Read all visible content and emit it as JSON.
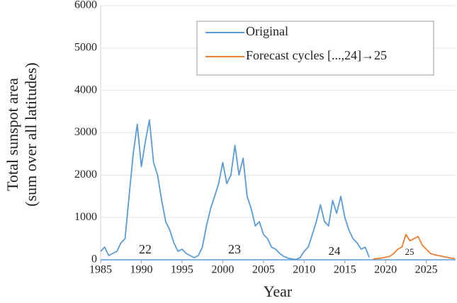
{
  "chart_data": {
    "type": "line",
    "x_label": "Year",
    "y_label": [
      "Total sunspot area",
      "(sum over all latitudes)"
    ],
    "annotations": [
      "22",
      "23",
      "24",
      "25"
    ],
    "xlim": [
      1985,
      2028.6
    ],
    "xticks": [
      1985,
      1990,
      1995,
      2000,
      2005,
      2010,
      2015,
      2020,
      2025
    ],
    "ylim": [
      0,
      6000
    ],
    "yticks": [
      0,
      1000,
      2000,
      3000,
      4000,
      5000,
      6000
    ],
    "grid": true,
    "legend": "top-right",
    "series": [
      {
        "name": "Original",
        "color": "#5b9bd5",
        "x": [
          1985,
          1985.5,
          1986,
          1986.5,
          1987,
          1987.5,
          1988,
          1988.5,
          1989,
          1989.5,
          1990,
          1990.5,
          1991,
          1991.5,
          1992,
          1992.5,
          1993,
          1993.5,
          1994,
          1994.5,
          1995,
          1995.5,
          1996,
          1996.5,
          1997,
          1997.5,
          1998,
          1998.5,
          1999,
          1999.5,
          2000,
          2000.5,
          2001,
          2001.5,
          2002,
          2002.5,
          2003,
          2003.5,
          2004,
          2004.5,
          2005,
          2005.5,
          2006,
          2006.5,
          2007,
          2007.5,
          2008,
          2008.5,
          2009,
          2009.5,
          2010,
          2010.5,
          2011,
          2011.5,
          2012,
          2012.5,
          2013,
          2013.5,
          2014,
          2014.5,
          2015,
          2015.5,
          2016,
          2016.5,
          2017,
          2017.5,
          2018
        ],
        "values": [
          200,
          300,
          100,
          150,
          200,
          400,
          500,
          1500,
          2500,
          3200,
          2200,
          2800,
          3300,
          2300,
          2000,
          1400,
          900,
          700,
          400,
          200,
          250,
          150,
          100,
          50,
          100,
          300,
          800,
          1200,
          1500,
          1800,
          2300,
          1800,
          2000,
          2700,
          2000,
          2400,
          1500,
          1200,
          800,
          900,
          600,
          500,
          300,
          250,
          150,
          80,
          40,
          20,
          10,
          50,
          200,
          300,
          600,
          900,
          1300,
          900,
          800,
          1400,
          1100,
          1500,
          1000,
          700,
          500,
          400,
          250,
          300,
          60
        ]
      },
      {
        "name": "Forecast cycles [...,24]→25",
        "color": "#ed7d31",
        "x": [
          2018.5,
          2019,
          2019.5,
          2020,
          2020.5,
          2021,
          2021.5,
          2022,
          2022.5,
          2023,
          2023.5,
          2024,
          2024.5,
          2025,
          2025.5,
          2026,
          2026.5,
          2027,
          2027.5,
          2028,
          2028.5
        ],
        "values": [
          20,
          30,
          40,
          60,
          80,
          150,
          250,
          300,
          600,
          450,
          500,
          550,
          350,
          250,
          150,
          120,
          100,
          80,
          60,
          40,
          30
        ]
      }
    ]
  }
}
